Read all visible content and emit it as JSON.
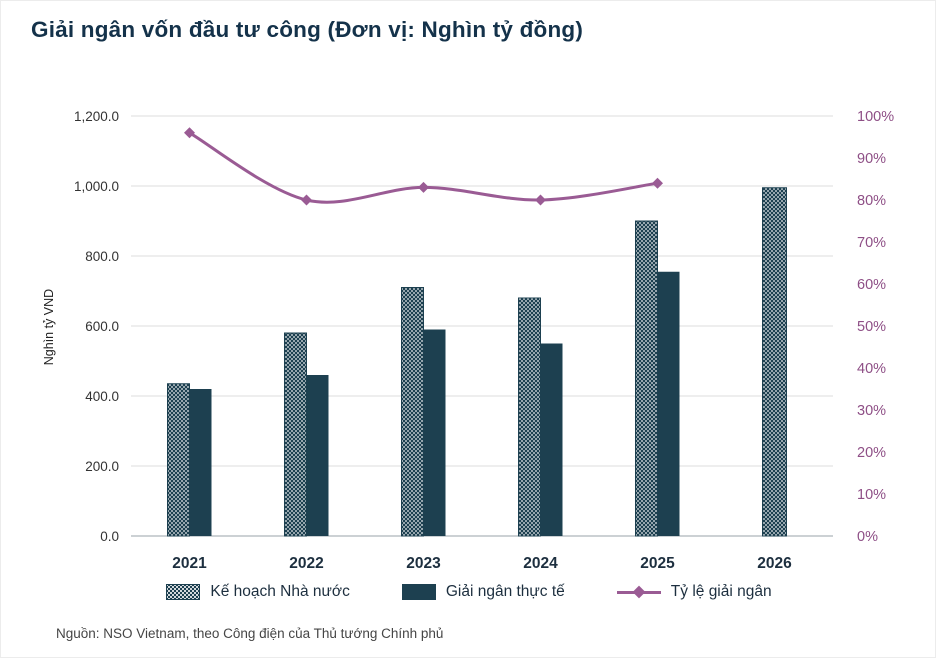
{
  "title": "Giải ngân vốn đầu tư công (Đơn vị: Nghìn tỷ đồng)",
  "source": "Nguồn: NSO Vietnam, theo Công điện của Thủ tướng Chính phủ",
  "colors": {
    "bar": "#1d4050",
    "line": "#9a5b94",
    "grid": "#dcdcdc",
    "axis_line": "#9aa3aa",
    "right_axis_text": "#8e4f86",
    "title_text": "#14324a"
  },
  "chart_data": {
    "type": "bar",
    "subtype": "grouped-bar-with-line",
    "title": "Giải ngân vốn đầu tư công (Đơn vị: Nghìn tỷ đồng)",
    "categories": [
      "2021",
      "2022",
      "2023",
      "2024",
      "2025",
      "2026"
    ],
    "series": [
      {
        "name": "Kế hoạch Nhà nước",
        "type": "bar",
        "style": "hatched",
        "axis": "left",
        "values": [
          435,
          580,
          710,
          680,
          900,
          995
        ]
      },
      {
        "name": "Giải ngân thực tế",
        "type": "bar",
        "style": "solid",
        "axis": "left",
        "values": [
          420,
          460,
          590,
          550,
          755,
          null
        ]
      },
      {
        "name": "Tỷ lệ giải ngân",
        "type": "line",
        "style": "diamond-markers",
        "axis": "right",
        "values": [
          96,
          80,
          83,
          80,
          84,
          null
        ]
      }
    ],
    "xlabel": "",
    "ylabel": "Nghìn tỷ VND",
    "ylim": [
      0,
      1200
    ],
    "ytick_step": 200,
    "ytick_labels": [
      "0.0",
      "200.0",
      "400.0",
      "600.0",
      "800.0",
      "1,000.0",
      "1,200.0"
    ],
    "y2lim": [
      0,
      100
    ],
    "y2tick_step": 10,
    "y2tick_labels": [
      "0%",
      "10%",
      "20%",
      "30%",
      "40%",
      "50%",
      "60%",
      "70%",
      "80%",
      "90%",
      "100%"
    ],
    "grid": true,
    "legend_position": "bottom"
  }
}
